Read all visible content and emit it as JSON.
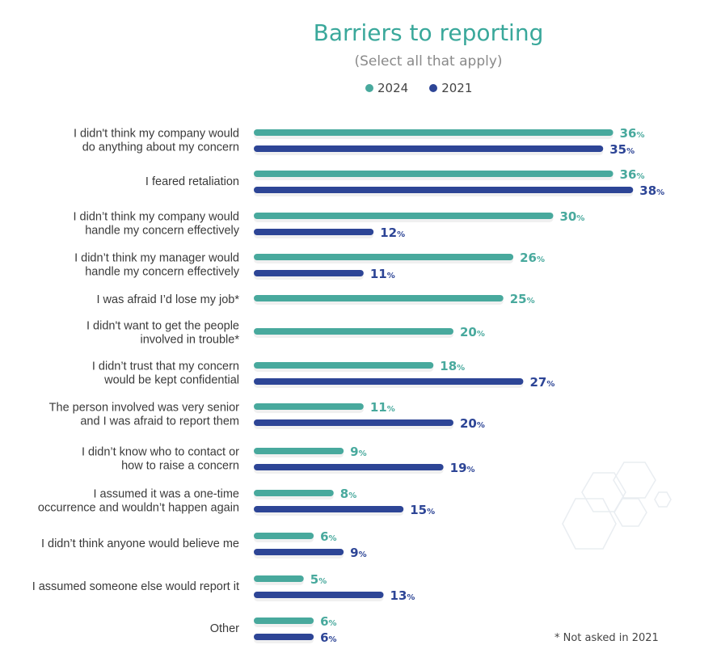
{
  "title": "Barriers to reporting",
  "subtitle": "(Select all that apply)",
  "note": "* Not asked in 2021",
  "colors": {
    "s2024": "#48a99d",
    "s2021": "#2d4596",
    "title": "#3aa89b"
  },
  "chart_data": {
    "type": "bar",
    "orientation": "horizontal",
    "title": "Barriers to reporting",
    "subtitle": "(Select all that apply)",
    "legend": [
      "2024",
      "2021"
    ],
    "legend_position": "top",
    "unit": "%",
    "categories": [
      [
        "I didn't think my company would",
        "do anything about my concern"
      ],
      [
        "I feared retaliation"
      ],
      [
        "I didn’t think my company would",
        "handle my concern effectively"
      ],
      [
        "I didn’t think my manager would",
        "handle my concern effectively"
      ],
      [
        "I was afraid I’d lose my job*"
      ],
      [
        "I didn't want to get the people",
        "involved in trouble*"
      ],
      [
        "I didn’t trust that my concern",
        "would be kept confidential"
      ],
      [
        "The person involved was very senior",
        "and I was afraid to report them"
      ],
      [
        "I didn’t know who to contact or",
        "how to raise a concern"
      ],
      [
        "I assumed it was a one-time",
        "occurrence and wouldn’t happen again"
      ],
      [
        "I didn’t think anyone would believe me"
      ],
      [
        "I assumed someone else would report it"
      ],
      [
        "Other"
      ]
    ],
    "series": [
      {
        "name": "2024",
        "values": [
          36,
          36,
          30,
          26,
          25,
          20,
          18,
          11,
          9,
          8,
          6,
          5,
          6
        ]
      },
      {
        "name": "2021",
        "values": [
          35,
          38,
          12,
          11,
          null,
          null,
          27,
          20,
          19,
          15,
          9,
          13,
          6
        ]
      }
    ],
    "xlim": [
      0,
      40
    ]
  }
}
